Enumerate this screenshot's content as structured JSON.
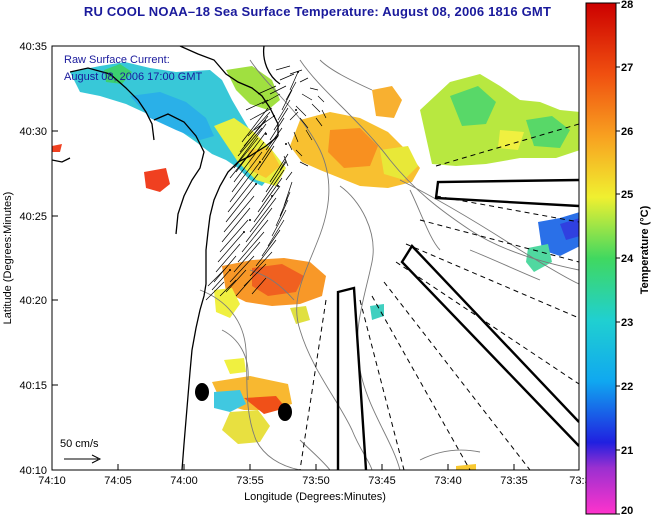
{
  "title": "RU COOL  NOAA–18  Sea Surface Temperature:  August 08, 2006 1816 GMT",
  "current_label": {
    "line1": "Raw Surface Current:",
    "line2": "August 08, 2006 17:00 GMT"
  },
  "scale_label": "50 cm/s",
  "axes": {
    "x_label": "Longitude (Degrees:Minutes)",
    "y_label": "Latitude (Degrees:Minutes)",
    "x_ticks": [
      "74:10",
      "74:05",
      "74:00",
      "73:55",
      "73:50",
      "73:45",
      "73:40",
      "73:35",
      "73:3"
    ],
    "y_ticks": [
      "40:35",
      "40:30",
      "40:25",
      "40:20",
      "40:15",
      "40:10"
    ]
  },
  "colorbar": {
    "label": "Temperature (°C)",
    "ticks": [
      "28",
      "27",
      "26",
      "25",
      "24",
      "23",
      "22",
      "21",
      "20"
    ],
    "min": 20,
    "max": 28
  }
}
